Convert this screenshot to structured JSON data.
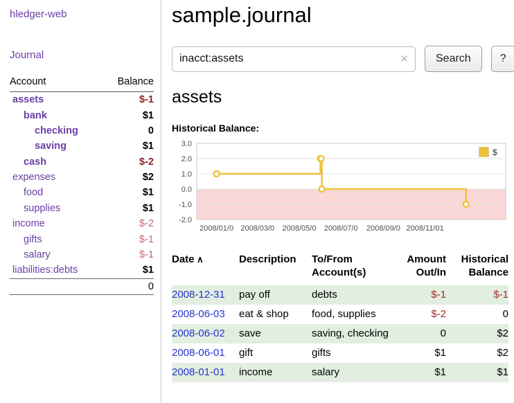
{
  "app_title": "hledger-web",
  "header": {
    "title": "sample.journal"
  },
  "search": {
    "value": "inacct:assets",
    "clear_icon": "✕",
    "button": "Search",
    "help_button": "?"
  },
  "account_page": {
    "heading": "assets",
    "chart_title": "Historical Balance:"
  },
  "sidebar": {
    "journal_link": "Journal",
    "accounts_header": {
      "account": "Account",
      "balance": "Balance"
    },
    "accounts": [
      {
        "name": "assets",
        "depth": 0,
        "balance": "$-1",
        "name_bold": true,
        "name_negative": true,
        "balance_bold": true,
        "balance_negative": true,
        "balance_muted": false
      },
      {
        "name": "bank",
        "depth": 1,
        "balance": "$1",
        "name_bold": true,
        "name_negative": false,
        "balance_bold": true,
        "balance_negative": false,
        "balance_muted": false
      },
      {
        "name": "checking",
        "depth": 2,
        "balance": "0",
        "name_bold": true,
        "name_negative": false,
        "balance_bold": true,
        "balance_negative": false,
        "balance_muted": false
      },
      {
        "name": "saving",
        "depth": 2,
        "balance": "$1",
        "name_bold": true,
        "name_negative": false,
        "balance_bold": true,
        "balance_negative": false,
        "balance_muted": false
      },
      {
        "name": "cash",
        "depth": 1,
        "balance": "$-2",
        "name_bold": true,
        "name_negative": true,
        "balance_bold": true,
        "balance_negative": true,
        "balance_muted": false
      },
      {
        "name": "expenses",
        "depth": 0,
        "balance": "$2",
        "name_bold": false,
        "name_negative": false,
        "balance_bold": true,
        "balance_negative": false,
        "balance_muted": false
      },
      {
        "name": "food",
        "depth": 1,
        "balance": "$1",
        "name_bold": false,
        "name_negative": false,
        "balance_bold": true,
        "balance_negative": false,
        "balance_muted": false
      },
      {
        "name": "supplies",
        "depth": 1,
        "balance": "$1",
        "name_bold": false,
        "name_negative": false,
        "balance_bold": true,
        "balance_negative": false,
        "balance_muted": false
      },
      {
        "name": "income",
        "depth": 0,
        "balance": "$-2",
        "name_bold": false,
        "name_negative": false,
        "balance_bold": false,
        "balance_negative": true,
        "balance_muted": true
      },
      {
        "name": "gifts",
        "depth": 1,
        "balance": "$-1",
        "name_bold": false,
        "name_negative": false,
        "balance_bold": false,
        "balance_negative": true,
        "balance_muted": true
      },
      {
        "name": "salary",
        "depth": 1,
        "balance": "$-1",
        "name_bold": false,
        "name_negative": false,
        "balance_bold": false,
        "balance_negative": true,
        "balance_muted": true
      },
      {
        "name": "liabilities:debts",
        "depth": 0,
        "balance": "$1",
        "name_bold": false,
        "name_negative": false,
        "balance_bold": true,
        "balance_negative": false,
        "balance_muted": false
      }
    ],
    "total": "0"
  },
  "chart_data": {
    "type": "line",
    "step": true,
    "title": "Historical Balance",
    "series": [
      {
        "name": "$",
        "color": "#edc240",
        "points": [
          {
            "date": "2008-01-01",
            "value": 1
          },
          {
            "date": "2008-06-01",
            "value": 2
          },
          {
            "date": "2008-06-02",
            "value": 2
          },
          {
            "date": "2008-06-03",
            "value": 0
          },
          {
            "date": "2008-12-31",
            "value": -1
          }
        ]
      }
    ],
    "ylim": [
      -2.0,
      3.0
    ],
    "y_ticks": [
      3.0,
      2.0,
      1.0,
      0.0,
      -1.0,
      -2.0
    ],
    "x_ticks": [
      {
        "label": "2008/01/0",
        "date": "2008-01-01"
      },
      {
        "label": "2008/03/0",
        "date": "2008-03-01"
      },
      {
        "label": "2008/05/0",
        "date": "2008-05-01"
      },
      {
        "label": "2008/07/0",
        "date": "2008-07-01"
      },
      {
        "label": "2008/09/0",
        "date": "2008-09-01"
      },
      {
        "label": "2008/11/01",
        "date": "2008-11-01"
      }
    ],
    "negative_region_color": "#fad7d7",
    "grid_color": "#e3e3e3",
    "legend": {
      "label": "$",
      "position": "top-right"
    }
  },
  "register": {
    "columns": [
      {
        "lines": [
          "Date"
        ],
        "sort_indicator": "∧",
        "align": "left"
      },
      {
        "lines": [
          "Description"
        ],
        "align": "left"
      },
      {
        "lines": [
          "To/From",
          "Account(s)"
        ],
        "align": "left"
      },
      {
        "lines": [
          "Amount",
          "Out/In"
        ],
        "align": "right"
      },
      {
        "lines": [
          "Historical",
          "Balance"
        ],
        "align": "right"
      }
    ],
    "rows": [
      {
        "date": "2008-12-31",
        "description": "pay off",
        "accounts": "debts",
        "amount": "$-1",
        "amount_negative": true,
        "balance": "$-1",
        "balance_negative": true,
        "shaded": true
      },
      {
        "date": "2008-06-03",
        "description": "eat & shop",
        "accounts": "food, supplies",
        "amount": "$-2",
        "amount_negative": true,
        "balance": "0",
        "balance_negative": false,
        "shaded": false
      },
      {
        "date": "2008-06-02",
        "description": "save",
        "accounts": "saving, checking",
        "amount": "0",
        "amount_negative": false,
        "balance": "$2",
        "balance_negative": false,
        "shaded": true
      },
      {
        "date": "2008-06-01",
        "description": "gift",
        "accounts": "gifts",
        "amount": "$1",
        "amount_negative": false,
        "balance": "$2",
        "balance_negative": false,
        "shaded": false
      },
      {
        "date": "2008-01-01",
        "description": "income",
        "accounts": "salary",
        "amount": "$1",
        "amount_negative": false,
        "balance": "$1",
        "balance_negative": false,
        "shaded": true
      }
    ]
  }
}
